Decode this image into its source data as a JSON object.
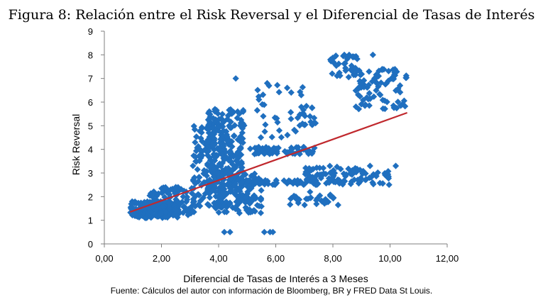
{
  "figure": {
    "caption": "Figura 8: Relación entre el Risk Reversal y el Diferencial de Tasas de Interés",
    "source": "Fuente:  Cálculos del autor con información de Bloomberg, BR y FRED Data St Louis."
  },
  "chart_data": {
    "type": "scatter",
    "xlabel": "Diferencial de Tasas de Interés a 3 Meses",
    "ylabel": "Risk Reversal",
    "xlim": [
      0,
      12
    ],
    "ylim": [
      0,
      9
    ],
    "x_ticks": [
      0,
      2,
      4,
      6,
      8,
      10,
      12
    ],
    "x_tick_labels": [
      "0,00",
      "2,00",
      "4,00",
      "6,00",
      "8,00",
      "10,00",
      "12,00"
    ],
    "y_ticks": [
      0,
      1,
      2,
      3,
      4,
      5,
      6,
      7,
      8,
      9
    ],
    "y_tick_labels": [
      "0",
      "1",
      "2",
      "3",
      "4",
      "5",
      "6",
      "7",
      "8",
      "9"
    ],
    "grid": false,
    "legend": "none",
    "marker_color": "#1f6fbf",
    "trendline_color": "#c0282d",
    "trendline": {
      "x": [
        0.9,
        10.6
      ],
      "y": [
        1.35,
        5.55
      ]
    },
    "clusters": [
      {
        "xmin": 0.9,
        "xmax": 2.6,
        "ymin": 1.1,
        "ymax": 1.8,
        "n": 180
      },
      {
        "xmin": 1.5,
        "xmax": 3.2,
        "ymin": 1.2,
        "ymax": 2.4,
        "n": 90
      },
      {
        "xmin": 3.1,
        "xmax": 4.2,
        "ymin": 1.5,
        "ymax": 5.3,
        "n": 160
      },
      {
        "xmin": 3.6,
        "xmax": 4.9,
        "ymin": 2.2,
        "ymax": 5.8,
        "n": 200
      },
      {
        "xmin": 4.0,
        "xmax": 5.5,
        "ymin": 1.3,
        "ymax": 3.0,
        "n": 120
      },
      {
        "xmin": 5.0,
        "xmax": 7.4,
        "ymin": 3.8,
        "ymax": 4.1,
        "n": 60
      },
      {
        "xmin": 5.3,
        "xmax": 7.0,
        "ymin": 4.5,
        "ymax": 6.8,
        "n": 30
      },
      {
        "xmin": 4.5,
        "xmax": 8.5,
        "ymin": 2.5,
        "ymax": 2.7,
        "n": 70
      },
      {
        "xmin": 7.0,
        "xmax": 9.0,
        "ymin": 2.6,
        "ymax": 3.3,
        "n": 60
      },
      {
        "xmin": 6.5,
        "xmax": 8.2,
        "ymin": 1.6,
        "ymax": 2.1,
        "n": 30
      },
      {
        "xmin": 8.8,
        "xmax": 10.6,
        "ymin": 5.7,
        "ymax": 7.4,
        "n": 80
      },
      {
        "xmin": 7.9,
        "xmax": 8.9,
        "ymin": 7.0,
        "ymax": 8.0,
        "n": 35
      },
      {
        "xmin": 6.8,
        "xmax": 7.4,
        "ymin": 5.0,
        "ymax": 6.0,
        "n": 20
      },
      {
        "xmin": 8.5,
        "xmax": 10.0,
        "ymin": 2.5,
        "ymax": 3.1,
        "n": 30
      },
      {
        "xmin": 2.0,
        "xmax": 2.6,
        "ymin": 2.2,
        "ymax": 2.4,
        "n": 10
      }
    ],
    "extra_points": [
      [
        4.2,
        0.5
      ],
      [
        4.4,
        0.5
      ],
      [
        5.6,
        0.5
      ],
      [
        5.8,
        0.5
      ],
      [
        5.9,
        0.5
      ],
      [
        4.6,
        7.0
      ],
      [
        9.4,
        8.0
      ],
      [
        10.2,
        3.3
      ],
      [
        9.3,
        3.3
      ],
      [
        7.2,
        2.2
      ],
      [
        8.4,
        8.0
      ],
      [
        8.7,
        7.9
      ],
      [
        6.4,
        6.6
      ],
      [
        5.7,
        6.8
      ],
      [
        2.5,
        2.4
      ]
    ]
  }
}
